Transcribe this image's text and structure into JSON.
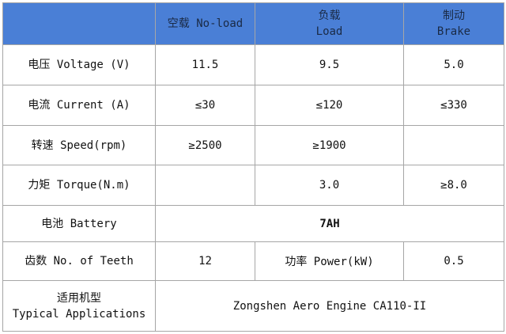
{
  "table": {
    "header": [
      null,
      [
        "空载 No-load"
      ],
      [
        "负载",
        "Load"
      ],
      [
        "制动",
        "Brake"
      ]
    ],
    "rows": [
      [
        [
          "电压 Voltage (V)"
        ],
        "11.5",
        "9.5",
        "5.0"
      ],
      [
        [
          "电流 Current (A)"
        ],
        "≤30",
        "≤120",
        "≤330"
      ],
      [
        [
          "转速 Speed(rpm)"
        ],
        "≥2500",
        "≥1900",
        null
      ],
      [
        [
          "力矩 Torque(N.m)"
        ],
        null,
        "3.0",
        "≥8.0"
      ],
      [
        [
          "电池 Battery"
        ],
        "7AH"
      ],
      [
        [
          "齿数 No. of Teeth"
        ],
        "12",
        "功率 Power(kW)",
        "0.5"
      ],
      [
        [
          "适用机型",
          "Typical Applications"
        ],
        "Zongshen Aero Engine CA110-II"
      ]
    ]
  }
}
